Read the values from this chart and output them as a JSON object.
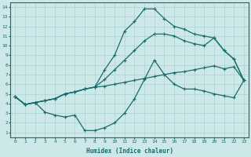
{
  "xlabel": "Humidex (Indice chaleur)",
  "bg_color": "#cce8e8",
  "grid_color": "#aad0d0",
  "line_color": "#1a6b6b",
  "xlim": [
    -0.5,
    23.5
  ],
  "ylim": [
    0.5,
    14.5
  ],
  "xticks": [
    0,
    1,
    2,
    3,
    4,
    5,
    6,
    7,
    8,
    9,
    10,
    11,
    12,
    13,
    14,
    15,
    16,
    17,
    18,
    19,
    20,
    21,
    22,
    23
  ],
  "yticks": [
    1,
    2,
    3,
    4,
    5,
    6,
    7,
    8,
    9,
    10,
    11,
    12,
    13,
    14
  ],
  "series_top_x": [
    0,
    1,
    2,
    3,
    4,
    5,
    6,
    7,
    8,
    9,
    10,
    11,
    12,
    13,
    14,
    15,
    16,
    17,
    18,
    19,
    20,
    21,
    22,
    23
  ],
  "series_top_y": [
    4.7,
    3.9,
    4.1,
    4.3,
    4.5,
    5.0,
    5.2,
    5.5,
    5.7,
    7.5,
    9.0,
    11.5,
    12.5,
    13.8,
    13.8,
    12.8,
    12.0,
    11.7,
    11.2,
    11.0,
    10.8,
    9.5,
    8.6,
    6.4
  ],
  "series_mid1_x": [
    0,
    1,
    2,
    3,
    4,
    5,
    6,
    7,
    8,
    9,
    10,
    11,
    12,
    13,
    14,
    15,
    16,
    17,
    18,
    19,
    20,
    21,
    22,
    23
  ],
  "series_mid1_y": [
    4.7,
    3.9,
    4.1,
    4.3,
    4.5,
    5.0,
    5.2,
    5.5,
    5.7,
    6.5,
    7.5,
    8.5,
    9.5,
    10.5,
    11.2,
    11.2,
    11.0,
    10.5,
    10.2,
    10.0,
    10.8,
    9.5,
    8.6,
    6.4
  ],
  "series_mid2_x": [
    0,
    1,
    2,
    3,
    4,
    5,
    6,
    7,
    8,
    9,
    10,
    11,
    12,
    13,
    14,
    15,
    16,
    17,
    18,
    19,
    20,
    21,
    22,
    23
  ],
  "series_mid2_y": [
    4.7,
    3.9,
    4.1,
    4.3,
    4.5,
    5.0,
    5.2,
    5.5,
    5.7,
    5.8,
    6.0,
    6.2,
    6.4,
    6.6,
    6.8,
    7.0,
    7.2,
    7.3,
    7.5,
    7.7,
    7.9,
    7.6,
    7.8,
    6.4
  ],
  "series_bot_x": [
    0,
    1,
    2,
    3,
    4,
    5,
    6,
    7,
    8,
    9,
    10,
    11,
    12,
    13,
    14,
    15,
    16,
    17,
    18,
    19,
    20,
    21,
    22,
    23
  ],
  "series_bot_y": [
    4.7,
    3.9,
    4.1,
    3.1,
    2.8,
    2.6,
    2.8,
    1.2,
    1.2,
    1.5,
    2.0,
    3.0,
    4.5,
    6.5,
    8.5,
    7.0,
    6.0,
    5.5,
    5.5,
    5.3,
    5.0,
    4.8,
    4.6,
    6.4
  ]
}
